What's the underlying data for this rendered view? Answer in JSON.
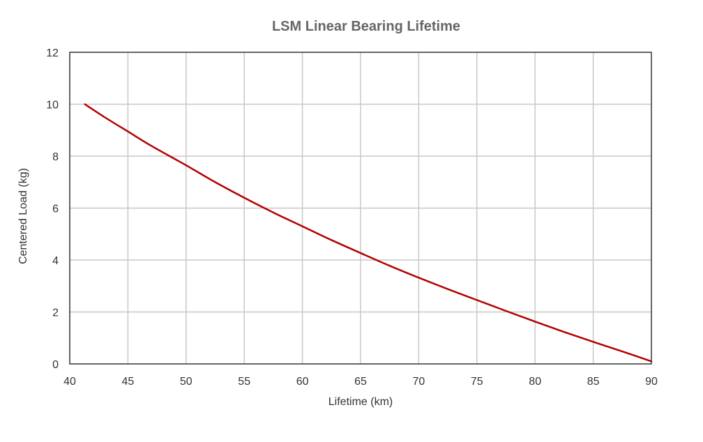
{
  "chart_data": {
    "type": "line",
    "title": "LSM Linear Bearing Lifetime",
    "xlabel": "Lifetime (km)",
    "ylabel": "Centered Load (kg)",
    "xlim": [
      40,
      90
    ],
    "ylim": [
      0,
      12
    ],
    "xticks": [
      40,
      45,
      50,
      55,
      60,
      65,
      70,
      75,
      80,
      85,
      90
    ],
    "yticks": [
      0,
      2,
      4,
      6,
      8,
      10,
      12
    ],
    "grid": true,
    "legend": "none",
    "series": [
      {
        "color": "#b30000",
        "x": [
          41.3,
          43,
          45,
          47,
          50,
          52.5,
          55,
          57.5,
          60,
          62.5,
          65,
          67.5,
          70,
          72.5,
          75,
          77.5,
          80,
          82.5,
          85,
          87.5,
          90
        ],
        "y": [
          10.0,
          9.5,
          8.95,
          8.4,
          7.65,
          7.0,
          6.4,
          5.83,
          5.3,
          4.77,
          4.27,
          3.78,
          3.32,
          2.88,
          2.46,
          2.04,
          1.63,
          1.23,
          0.85,
          0.48,
          0.1
        ]
      }
    ],
    "colors": {
      "title": "#666666",
      "axis_text": "#333333",
      "grid": "#c8c8c8",
      "frame": "#333333"
    }
  }
}
